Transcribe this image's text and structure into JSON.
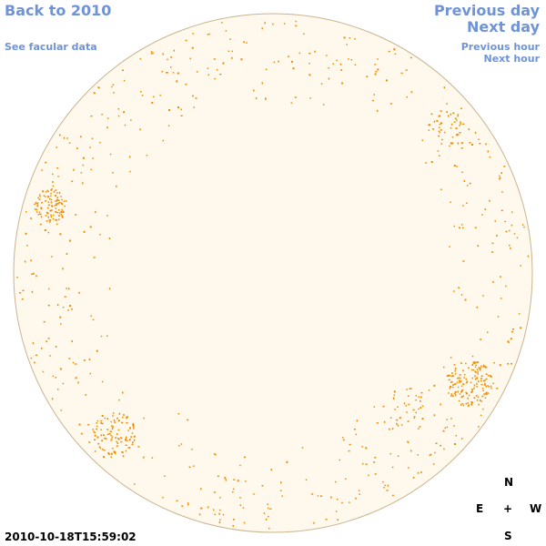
{
  "nav": {
    "back_year": "Back to 2010",
    "facular": "See facular data",
    "prev_day": "Previous day",
    "next_day": "Next day",
    "prev_hour": "Previous hour",
    "next_hour": "Next hour"
  },
  "compass": {
    "north": "N",
    "south": "S",
    "east": "E",
    "west": "W",
    "center": "+"
  },
  "timestamp": "2010-10-18T15:59:02",
  "colors": {
    "disk_fill": "#fff8ec",
    "disk_edge": "#c9b48e",
    "feature": "#f08c00",
    "link": "#6f93d6"
  }
}
